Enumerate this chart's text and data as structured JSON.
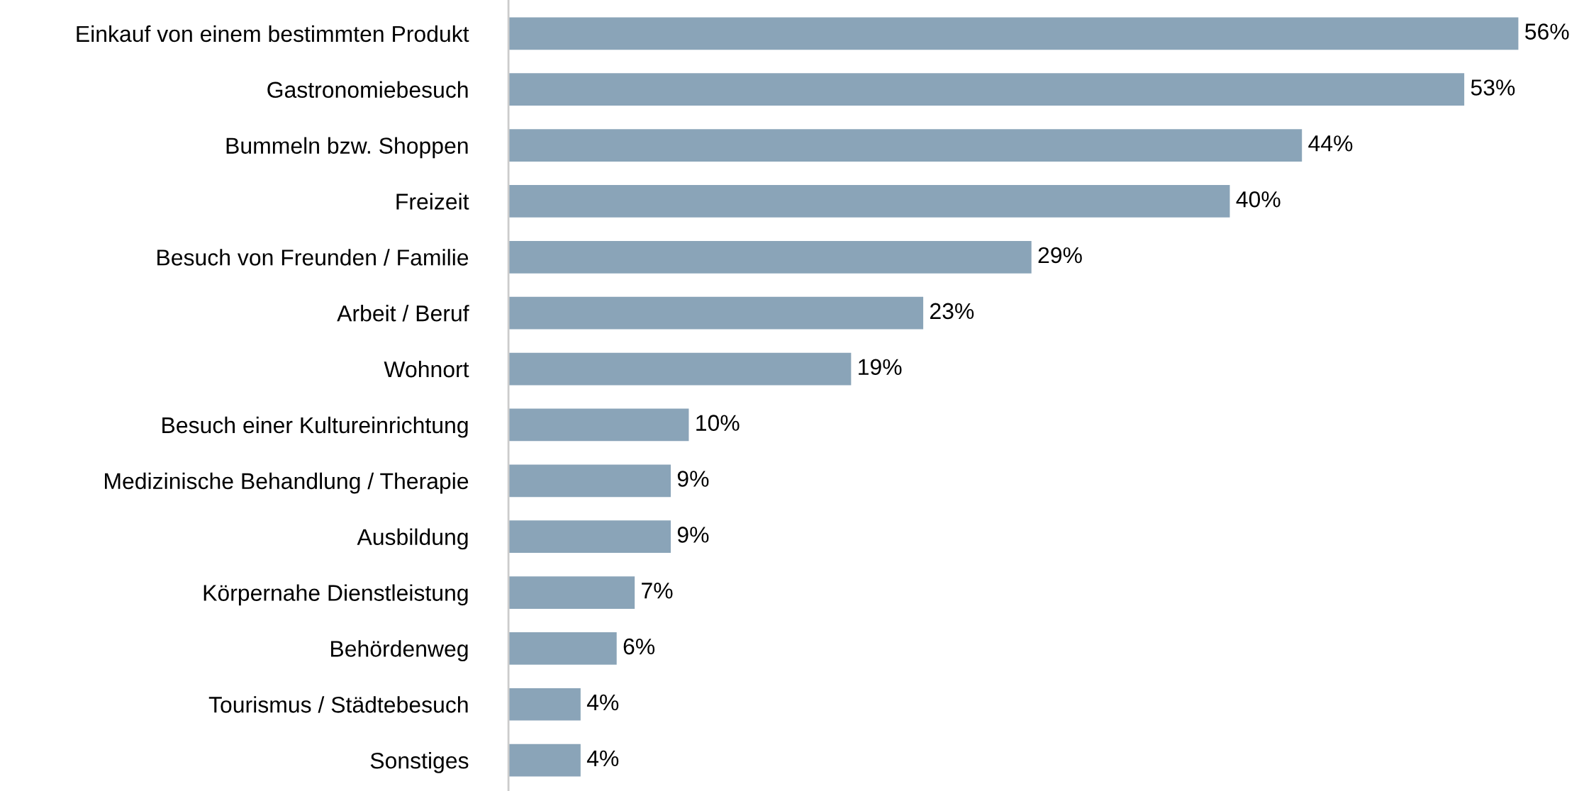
{
  "chart_data": {
    "type": "bar",
    "orientation": "horizontal",
    "categories": [
      "Einkauf von einem bestimmten Produkt",
      "Gastronomiebesuch",
      "Bummeln bzw. Shoppen",
      "Freizeit",
      "Besuch von Freunden / Familie",
      "Arbeit / Beruf",
      "Wohnort",
      "Besuch einer Kultureinrichtung",
      "Medizinische Behandlung / Therapie",
      "Ausbildung",
      "Körpernahe Dienstleistung",
      "Behördenweg",
      "Tourismus / Städtebesuch",
      "Sonstiges"
    ],
    "values": [
      56,
      53,
      44,
      40,
      29,
      23,
      19,
      10,
      9,
      9,
      7,
      6,
      4,
      4
    ],
    "value_labels": [
      "56%",
      "53%",
      "44%",
      "40%",
      "29%",
      "23%",
      "19%",
      "10%",
      "9%",
      "9%",
      "7%",
      "6%",
      "4%",
      "4%"
    ],
    "color": "#8aa4b8",
    "grid": false,
    "legend": false
  }
}
